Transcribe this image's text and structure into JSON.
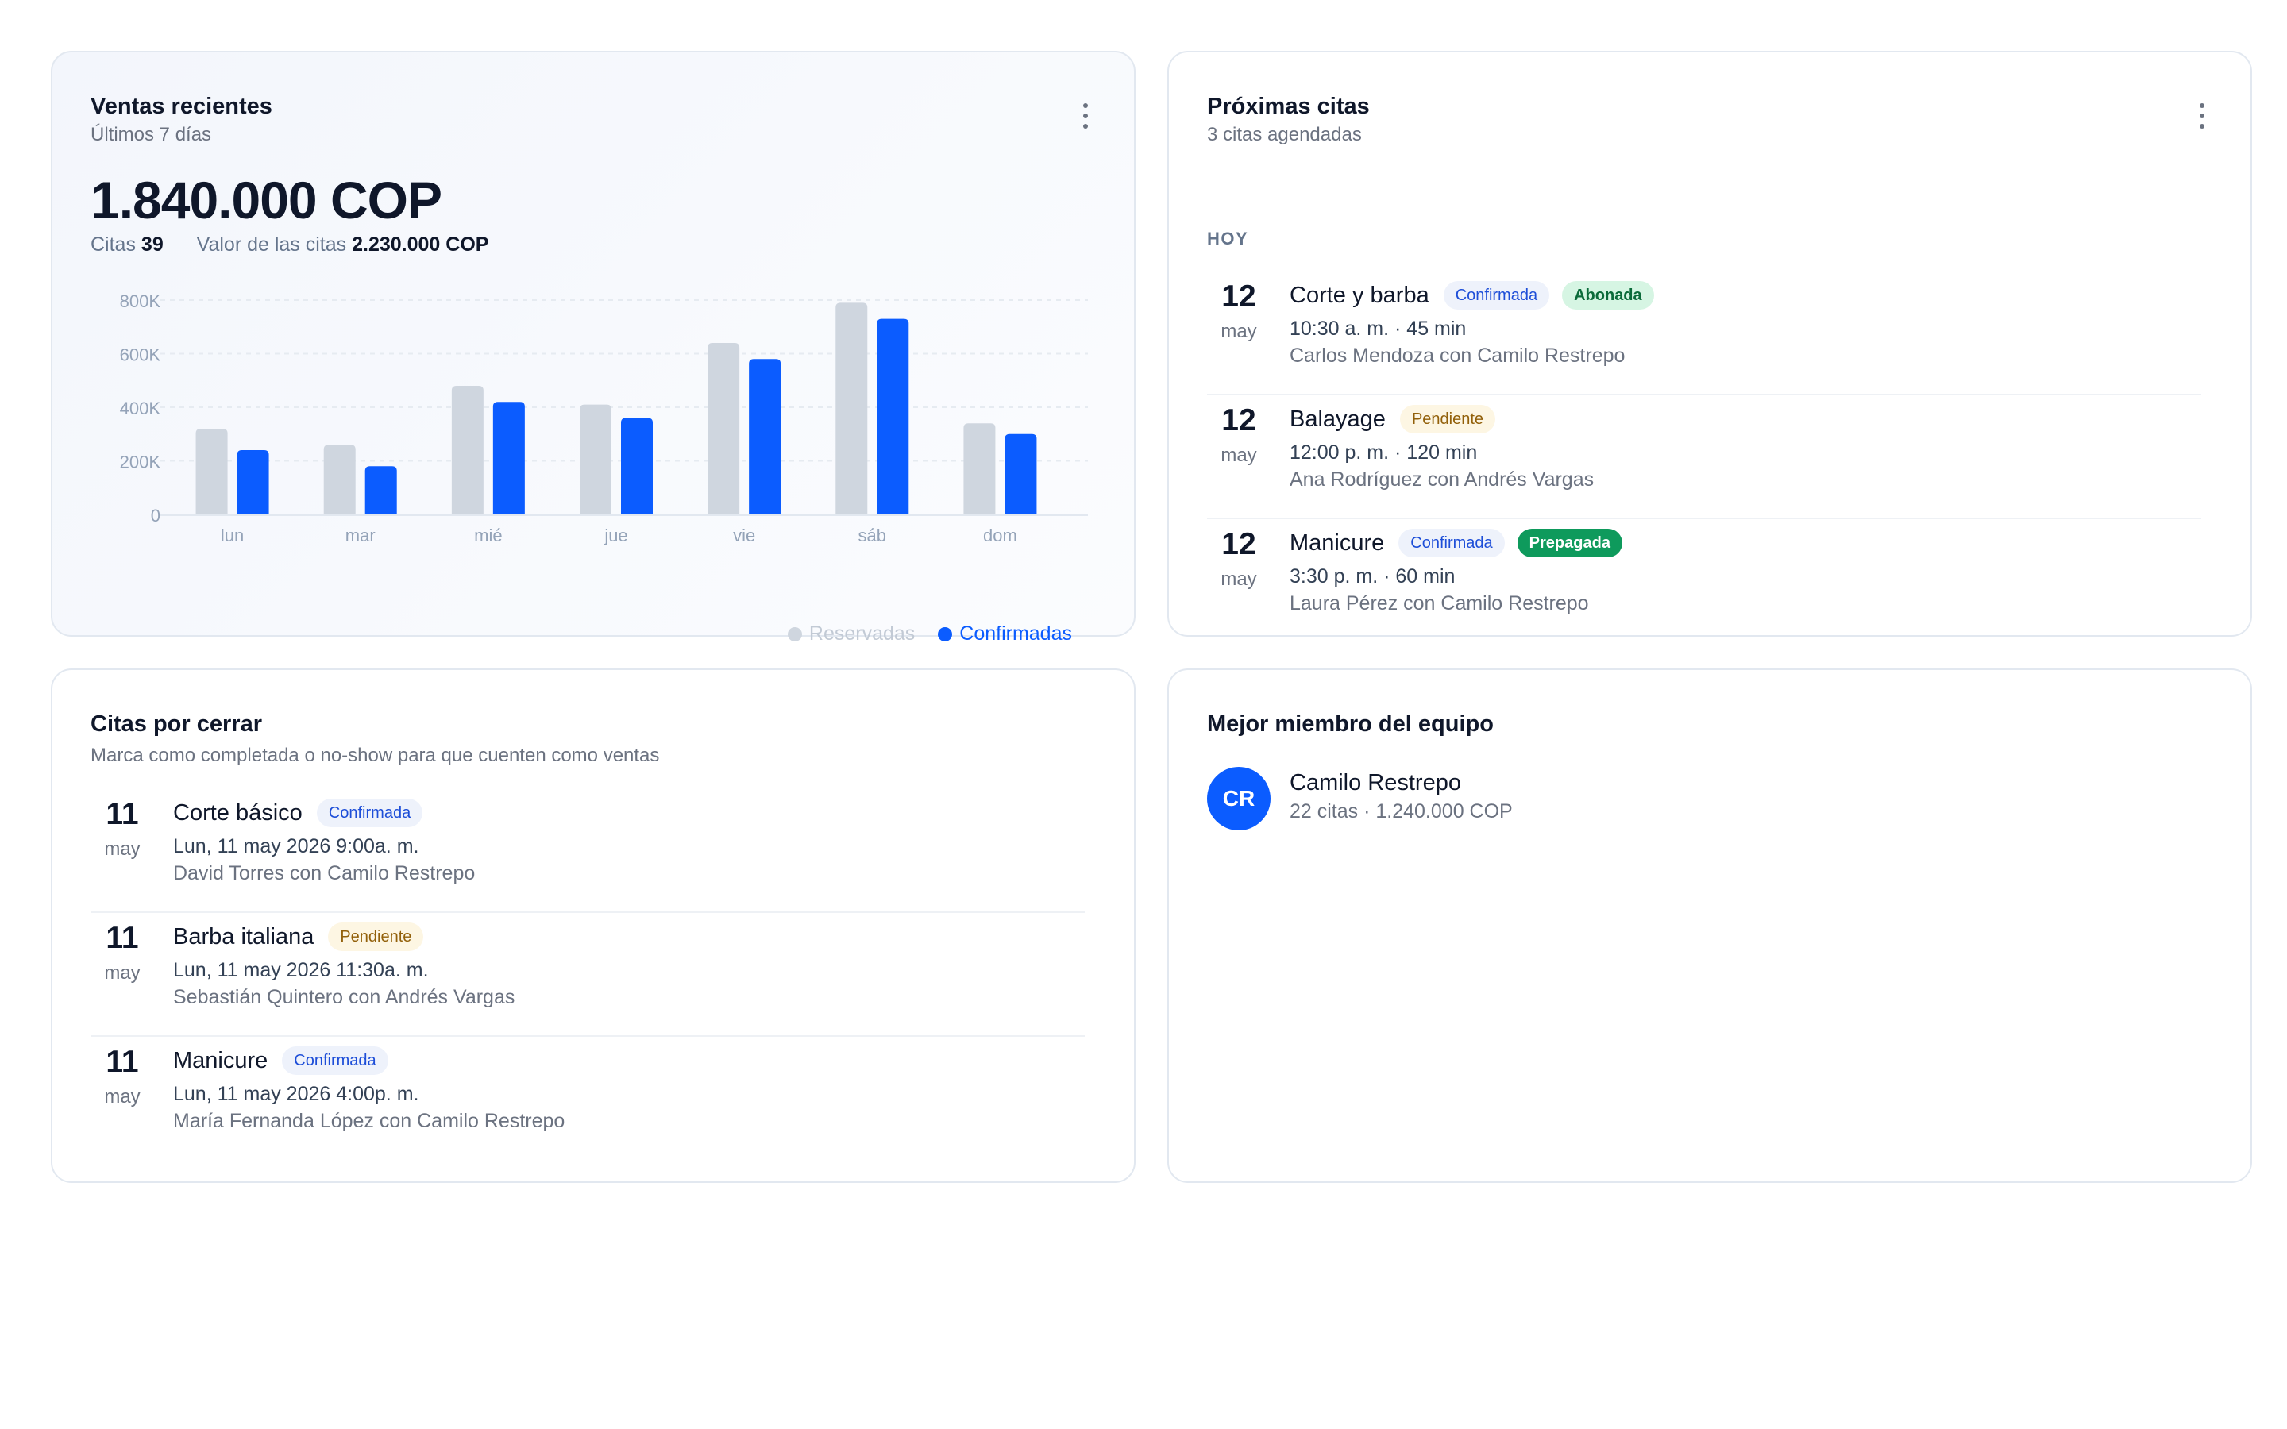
{
  "sales": {
    "title": "Ventas recientes",
    "subtitle": "Últimos 7 días",
    "total": "1.840.000 COP",
    "appointments_label": "Citas",
    "appointments_count": "39",
    "value_label": "Valor de las citas",
    "value_amount": "2.230.000 COP",
    "legend": {
      "reserved": "Reservadas",
      "confirmed": "Confirmadas"
    }
  },
  "chart_data": {
    "type": "bar",
    "categories": [
      "lun",
      "mar",
      "mié",
      "jue",
      "vie",
      "sáb",
      "dom"
    ],
    "series": [
      {
        "name": "Reservadas",
        "color": "#cfd6df",
        "values": [
          320000,
          260000,
          480000,
          410000,
          640000,
          790000,
          340000
        ]
      },
      {
        "name": "Confirmadas",
        "color": "#0b5cff",
        "values": [
          240000,
          180000,
          420000,
          360000,
          580000,
          730000,
          300000
        ]
      }
    ],
    "ytick_labels": [
      "0",
      "200K",
      "400K",
      "600K",
      "800K"
    ],
    "ylim": [
      0,
      800000
    ],
    "grid": true,
    "legend_position": "bottom-right"
  },
  "upcoming": {
    "title": "Próximas citas",
    "subtitle": "3 citas agendadas",
    "section": "HOY",
    "items": [
      {
        "day": "12",
        "month": "may",
        "service": "Corte y barba",
        "status": "Confirmada",
        "payment": "Abonada",
        "time": "10:30 a. m. · 45 min",
        "who": "Carlos Mendoza con Camilo Restrepo"
      },
      {
        "day": "12",
        "month": "may",
        "service": "Balayage",
        "status": "Pendiente",
        "time": "12:00 p. m. · 120 min",
        "who": "Ana Rodríguez con Andrés Vargas"
      },
      {
        "day": "12",
        "month": "may",
        "service": "Manicure",
        "status": "Confirmada",
        "payment": "Prepagada",
        "time": "3:30 p. m. · 60 min",
        "who": "Laura Pérez con Camilo Restrepo"
      }
    ]
  },
  "to_close": {
    "title": "Citas por cerrar",
    "subtitle": "Marca como completada o no-show para que cuenten como ventas",
    "items": [
      {
        "day": "11",
        "month": "may",
        "service": "Corte básico",
        "status": "Confirmada",
        "time": "Lun, 11 may 2026 9:00a. m.",
        "who": "David Torres con Camilo Restrepo"
      },
      {
        "day": "11",
        "month": "may",
        "service": "Barba italiana",
        "status": "Pendiente",
        "time": "Lun, 11 may 2026 11:30a. m.",
        "who": "Sebastián Quintero con Andrés Vargas"
      },
      {
        "day": "11",
        "month": "may",
        "service": "Manicure",
        "status": "Confirmada",
        "time": "Lun, 11 may 2026 4:00p. m.",
        "who": "María Fernanda López con Camilo Restrepo"
      }
    ]
  },
  "top_member": {
    "title": "Mejor miembro del equipo",
    "initials": "CR",
    "name": "Camilo Restrepo",
    "meta": "22 citas · 1.240.000 COP"
  }
}
